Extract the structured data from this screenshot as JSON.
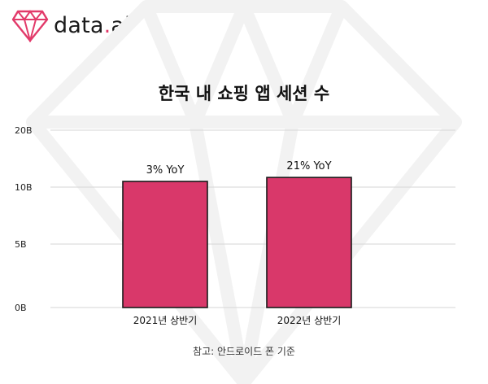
{
  "brand": {
    "name_prefix": "data",
    "name_dot": ".",
    "name_suffix": "ai",
    "accent_color": "#e23a6a"
  },
  "chart_data": {
    "type": "bar",
    "title": "한국 내 쇼핑 앱 세션 수",
    "categories": [
      "2021년 상반기",
      "2022년 상반기"
    ],
    "values": [
      11.0,
      11.7
    ],
    "value_unit": "B",
    "data_labels": [
      "3% YoY",
      "21% YoY"
    ],
    "y_ticks": [
      "0B",
      "5B",
      "10B",
      "20B"
    ],
    "ylim": [
      0,
      20
    ],
    "grid": true,
    "bar_color": "#d9386a",
    "bar_outline_color": "#1a1a1a",
    "footnote": "참고: 안드로이드 폰 기준"
  }
}
